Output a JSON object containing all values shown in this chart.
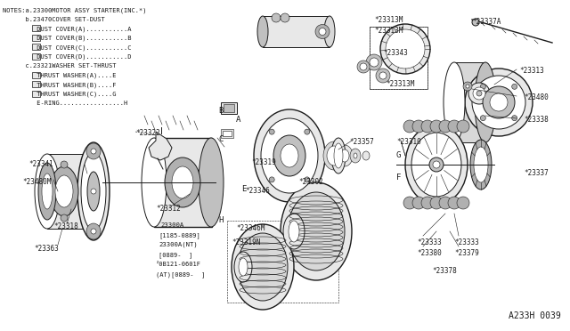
{
  "bg_color": "#ffffff",
  "line_color": "#1a1a1a",
  "fig_width": 6.4,
  "fig_height": 3.72,
  "dpi": 100,
  "notes_text": [
    "NOTES:a.23300MOTOR ASSY STARTER(INC.*)",
    "      b.23470COVER SET-DUST",
    "         DUST COVER(A)...........A",
    "         DUST COVER(B)...........B",
    "         DUST COVER(C)...........C",
    "         DUST COVER(D)...........D",
    "      c.23321WASHER SET-THRUST",
    "         THRUST WASHER(A)....E",
    "         THRUST WASHER(B)....F",
    "         THRUST WASHER(C)....G",
    "         E-RING.................H"
  ],
  "diagram_ref": "A233H 0039"
}
